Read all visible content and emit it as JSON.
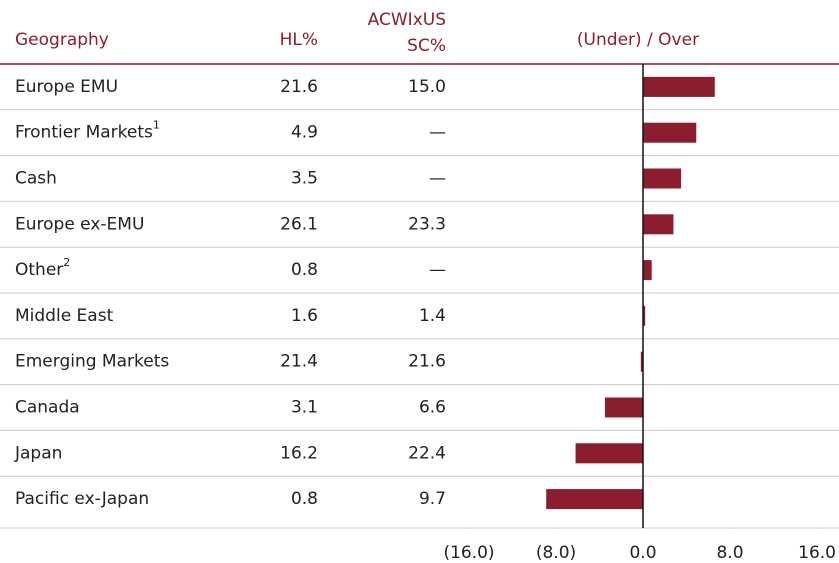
{
  "chart_data": {
    "type": "bar",
    "orientation": "horizontal",
    "headers": {
      "geography": "Geography",
      "hl": "HL%",
      "bench": [
        "ACWIxUS",
        "SC%"
      ],
      "diff": "(Under) / Over"
    },
    "categories": [
      "Europe EMU",
      "Frontier Markets",
      "Cash",
      "Europe ex-EMU",
      "Other",
      "Middle East",
      "Emerging Markets",
      "Canada",
      "Japan",
      "Pacific ex-Japan"
    ],
    "footnote_marks": [
      null,
      "1",
      null,
      null,
      "2",
      null,
      null,
      null,
      null,
      null
    ],
    "hl": [
      "21.6",
      "4.9",
      "3.5",
      "26.1",
      "0.8",
      "1.6",
      "21.4",
      "3.1",
      "16.2",
      "0.8"
    ],
    "bench": [
      "15.0",
      "—",
      "—",
      "23.3",
      "—",
      "1.4",
      "21.6",
      "6.6",
      "22.4",
      "9.7"
    ],
    "values": [
      6.6,
      4.9,
      3.5,
      2.8,
      0.8,
      0.2,
      -0.2,
      -3.5,
      -6.2,
      -8.9
    ],
    "color": "#8c1d2e",
    "xlim": [
      -16,
      16
    ],
    "xticks": [
      {
        "value": -16,
        "label": "(16.0)"
      },
      {
        "value": -8,
        "label": "(8.0)"
      },
      {
        "value": 0,
        "label": "0.0"
      },
      {
        "value": 8,
        "label": "8.0"
      },
      {
        "value": 16,
        "label": "16.0"
      }
    ]
  }
}
